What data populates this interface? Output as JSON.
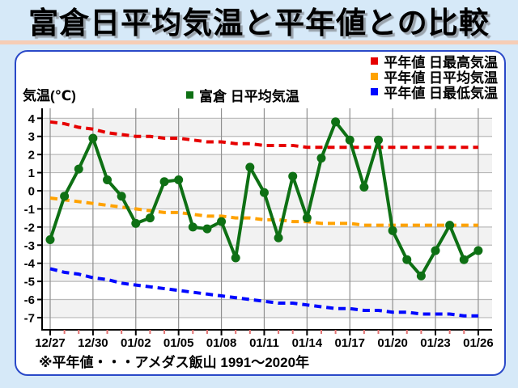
{
  "title": "富倉日平均気温と平年値との比較",
  "note": "※平年値・・・アメダス飯山 1991〜2020年",
  "chart": {
    "y_axis_label": "気温(℃)",
    "observed_legend": {
      "label": "富倉 日平均気温",
      "color": "#0e7014"
    },
    "legend": [
      {
        "label": "平年値 日最高気温",
        "color": "#e60000"
      },
      {
        "label": "平年値 日平均気温",
        "color": "#ffa200"
      },
      {
        "label": "平年値 日最低気温",
        "color": "#0008ff"
      }
    ]
  },
  "chart_data": {
    "type": "line",
    "title": "富倉日平均気温と平年値との比較",
    "xlabel": "",
    "ylabel": "気温(℃)",
    "ylim": [
      -7.75,
      4.55
    ],
    "grid": true,
    "legend_position": "top-right",
    "y_ticks": [
      4,
      3,
      2,
      1,
      0,
      -1,
      -2,
      -3,
      -4,
      -5,
      -6,
      -7
    ],
    "x_tick_labels": [
      "12/27",
      "12/30",
      "01/02",
      "01/05",
      "01/08",
      "01/11",
      "01/14",
      "01/17",
      "01/20",
      "01/23",
      "01/26"
    ],
    "categories": [
      "12/27",
      "12/28",
      "12/29",
      "12/30",
      "12/31",
      "01/01",
      "01/02",
      "01/03",
      "01/04",
      "01/05",
      "01/06",
      "01/07",
      "01/08",
      "01/09",
      "01/10",
      "01/11",
      "01/12",
      "01/13",
      "01/14",
      "01/15",
      "01/16",
      "01/17",
      "01/18",
      "01/19",
      "01/20",
      "01/21",
      "01/22",
      "01/23",
      "01/24",
      "01/25",
      "01/26"
    ],
    "series": [
      {
        "name": "富倉 日平均気温",
        "color": "#0e7014",
        "style": "solid-markers",
        "values": [
          -2.7,
          -0.3,
          1.2,
          2.9,
          0.6,
          -0.3,
          -1.8,
          -1.5,
          0.5,
          0.6,
          -2.0,
          -2.1,
          -1.7,
          -3.7,
          1.3,
          -0.1,
          -2.6,
          0.8,
          -1.5,
          1.8,
          3.8,
          2.8,
          0.2,
          2.8,
          -2.2,
          -3.8,
          -4.7,
          -3.3,
          -1.9,
          -3.8,
          -3.3
        ]
      },
      {
        "name": "平年値 日最高気温",
        "color": "#e60000",
        "style": "dashed",
        "values": [
          3.8,
          3.7,
          3.5,
          3.4,
          3.2,
          3.1,
          3.0,
          3.0,
          2.9,
          2.9,
          2.8,
          2.7,
          2.7,
          2.6,
          2.6,
          2.5,
          2.5,
          2.5,
          2.4,
          2.4,
          2.4,
          2.4,
          2.4,
          2.4,
          2.4,
          2.4,
          2.4,
          2.4,
          2.4,
          2.4,
          2.4
        ]
      },
      {
        "name": "平年値 日平均気温",
        "color": "#ffa200",
        "style": "dashed",
        "values": [
          -0.4,
          -0.5,
          -0.6,
          -0.7,
          -0.8,
          -0.9,
          -1.0,
          -1.1,
          -1.2,
          -1.2,
          -1.3,
          -1.4,
          -1.4,
          -1.5,
          -1.5,
          -1.6,
          -1.6,
          -1.7,
          -1.7,
          -1.8,
          -1.8,
          -1.8,
          -1.9,
          -1.9,
          -1.9,
          -1.9,
          -1.9,
          -1.9,
          -1.9,
          -1.9,
          -1.9
        ]
      },
      {
        "name": "平年値 日最低気温",
        "color": "#0008ff",
        "style": "dashed",
        "values": [
          -4.3,
          -4.5,
          -4.6,
          -4.8,
          -4.9,
          -5.1,
          -5.2,
          -5.3,
          -5.4,
          -5.5,
          -5.6,
          -5.7,
          -5.8,
          -5.9,
          -6.0,
          -6.1,
          -6.2,
          -6.2,
          -6.3,
          -6.4,
          -6.5,
          -6.5,
          -6.6,
          -6.6,
          -6.7,
          -6.7,
          -6.8,
          -6.8,
          -6.8,
          -6.9,
          -6.9
        ]
      }
    ],
    "note": "※平年値・・・アメダス飯山 1991〜2020年"
  }
}
